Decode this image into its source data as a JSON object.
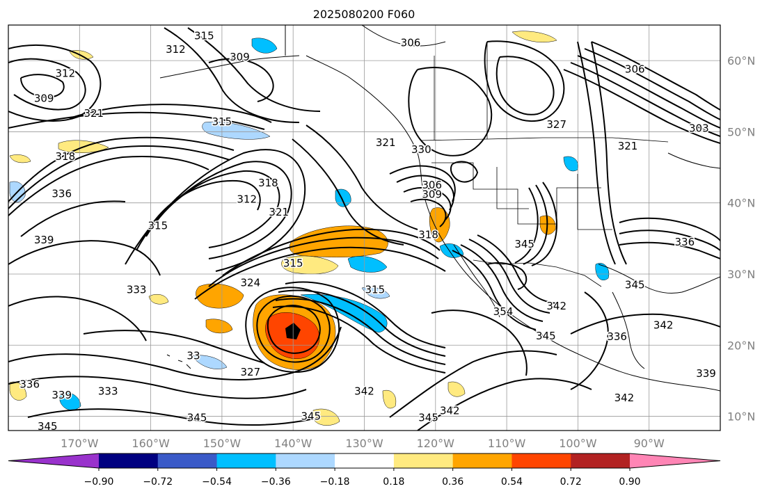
{
  "title": "2025080200 F060",
  "map": {
    "lon_range": [
      -180,
      -80
    ],
    "lat_range": [
      8,
      65
    ],
    "lon_ticks": [
      {
        "value": -170,
        "label": "170°W"
      },
      {
        "value": -160,
        "label": "160°W"
      },
      {
        "value": -150,
        "label": "150°W"
      },
      {
        "value": -140,
        "label": "140°W"
      },
      {
        "value": -130,
        "label": "130°W"
      },
      {
        "value": -120,
        "label": "120°W"
      },
      {
        "value": -110,
        "label": "110°W"
      },
      {
        "value": -100,
        "label": "100°W"
      },
      {
        "value": -90,
        "label": "90°W"
      }
    ],
    "lat_ticks": [
      {
        "value": 10,
        "label": "10°N"
      },
      {
        "value": 20,
        "label": "20°N"
      },
      {
        "value": 30,
        "label": "30°N"
      },
      {
        "value": 40,
        "label": "40°N"
      },
      {
        "value": 50,
        "label": "50°N"
      },
      {
        "value": 60,
        "label": "60°N"
      }
    ],
    "grid": true,
    "contour_labels": [
      {
        "text": "315",
        "lon": -152.5,
        "lat": 63.5
      },
      {
        "text": "312",
        "lon": -156.5,
        "lat": 61.6
      },
      {
        "text": "309",
        "lon": -147.5,
        "lat": 60.5
      },
      {
        "text": "312",
        "lon": -172,
        "lat": 58.2
      },
      {
        "text": "309",
        "lon": -175,
        "lat": 54.7
      },
      {
        "text": "321",
        "lon": -168,
        "lat": 52.6
      },
      {
        "text": "315",
        "lon": -150,
        "lat": 51.4
      },
      {
        "text": "318",
        "lon": -172,
        "lat": 46.5
      },
      {
        "text": "336",
        "lon": -172.5,
        "lat": 41.3
      },
      {
        "text": "318",
        "lon": -143.5,
        "lat": 42.8
      },
      {
        "text": "312",
        "lon": -146.5,
        "lat": 40.5
      },
      {
        "text": "321",
        "lon": -142,
        "lat": 38.7
      },
      {
        "text": "339",
        "lon": -175,
        "lat": 34.8
      },
      {
        "text": "315",
        "lon": -159,
        "lat": 36.8
      },
      {
        "text": "333",
        "lon": -162,
        "lat": 27.8
      },
      {
        "text": "324",
        "lon": -146,
        "lat": 28.8
      },
      {
        "text": "315",
        "lon": -140,
        "lat": 31.5
      },
      {
        "text": "315",
        "lon": -128.5,
        "lat": 27.8
      },
      {
        "text": "327",
        "lon": -146,
        "lat": 16.2
      },
      {
        "text": "33",
        "lon": -154,
        "lat": 18.5
      },
      {
        "text": "336",
        "lon": -177,
        "lat": 14.5
      },
      {
        "text": "339",
        "lon": -172.5,
        "lat": 13
      },
      {
        "text": "333",
        "lon": -166,
        "lat": 13.5
      },
      {
        "text": "345",
        "lon": -153.5,
        "lat": 9.8
      },
      {
        "text": "345",
        "lon": -174.5,
        "lat": 8.6
      },
      {
        "text": "345",
        "lon": -137.5,
        "lat": 10
      },
      {
        "text": "342",
        "lon": -130,
        "lat": 13.5
      },
      {
        "text": "345",
        "lon": -121,
        "lat": 9.8
      },
      {
        "text": "342",
        "lon": -118,
        "lat": 10.8
      },
      {
        "text": "306",
        "lon": -123.5,
        "lat": 62.5
      },
      {
        "text": "306",
        "lon": -92,
        "lat": 58.8
      },
      {
        "text": "321",
        "lon": -127,
        "lat": 48.5
      },
      {
        "text": "330",
        "lon": -122,
        "lat": 47.5
      },
      {
        "text": "327",
        "lon": -103,
        "lat": 51
      },
      {
        "text": "321",
        "lon": -93,
        "lat": 48
      },
      {
        "text": "303",
        "lon": -83,
        "lat": 50.5
      },
      {
        "text": "306",
        "lon": -120.5,
        "lat": 42.5
      },
      {
        "text": "309",
        "lon": -120.5,
        "lat": 41.2
      },
      {
        "text": "318",
        "lon": -121,
        "lat": 35.5
      },
      {
        "text": "336",
        "lon": -85,
        "lat": 34.5
      },
      {
        "text": "345",
        "lon": -107.5,
        "lat": 34.2
      },
      {
        "text": "345",
        "lon": -92,
        "lat": 28.5
      },
      {
        "text": "342",
        "lon": -103,
        "lat": 25.5
      },
      {
        "text": "354",
        "lon": -110.5,
        "lat": 24.7
      },
      {
        "text": "345",
        "lon": -104.5,
        "lat": 21.3
      },
      {
        "text": "336",
        "lon": -94.5,
        "lat": 21.2
      },
      {
        "text": "342",
        "lon": -88,
        "lat": 22.8
      },
      {
        "text": "339",
        "lon": -82,
        "lat": 16
      },
      {
        "text": "342",
        "lon": -93.5,
        "lat": 12.6
      }
    ]
  },
  "colorbar": {
    "bins": [
      {
        "color": "#9932cc"
      },
      {
        "color": "#000080"
      },
      {
        "color": "#3a5ac8"
      },
      {
        "color": "#00bfff"
      },
      {
        "color": "#add8ff"
      },
      {
        "color": "#ffffff"
      },
      {
        "color": "#ffea80"
      },
      {
        "color": "#ffa500"
      },
      {
        "color": "#ff4500"
      },
      {
        "color": "#b22222"
      },
      {
        "color": "#ff85b5"
      }
    ],
    "tick_labels": [
      "−0.90",
      "−0.72",
      "−0.54",
      "−0.36",
      "−0.18",
      "0.18",
      "0.36",
      "0.54",
      "0.72",
      "0.90"
    ]
  }
}
